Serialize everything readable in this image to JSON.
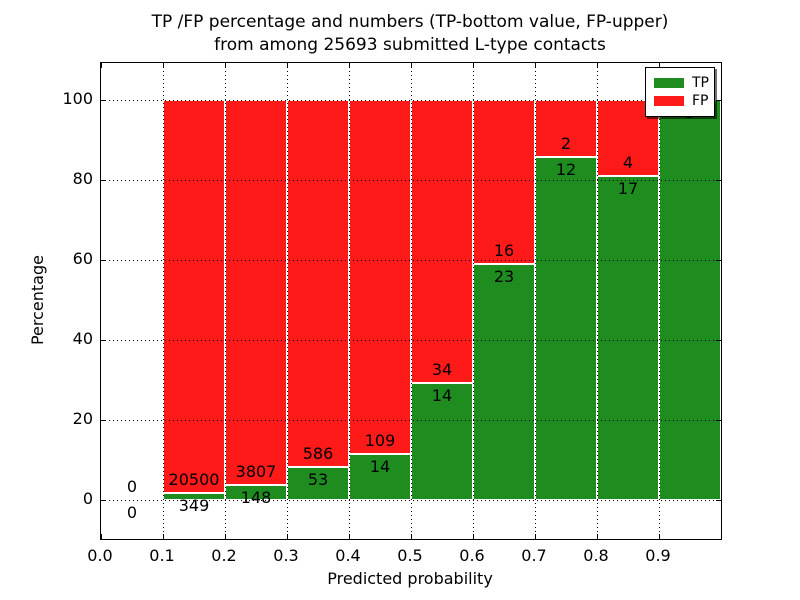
{
  "chart_data": {
    "type": "bar",
    "stacked": true,
    "title_line1": "TP /FP percentage and numbers (TP-bottom value, FP-upper)",
    "title_line2": "from among 25693 submitted L-type contacts",
    "xlabel": "Predicted probability",
    "ylabel": "Percentage",
    "submitted_total": 25693,
    "x_tick_labels": [
      "0.0",
      "0.1",
      "0.2",
      "0.3",
      "0.4",
      "0.5",
      "0.6",
      "0.7",
      "0.8",
      "0.9"
    ],
    "y_tick_values": [
      0,
      20,
      40,
      60,
      80,
      100
    ],
    "xlim": [
      0.0,
      1.0
    ],
    "ylim": [
      -10,
      109
    ],
    "bin_width": 0.1,
    "grid": true,
    "colors": {
      "tp": "#1e8c1e",
      "fp": "#ff1a1a"
    },
    "bins": [
      {
        "x_start": 0.0,
        "tp_count": 0,
        "fp_count": 0,
        "tp_pct": 0.0
      },
      {
        "x_start": 0.1,
        "tp_count": 349,
        "fp_count": 20500,
        "tp_pct": 1.674
      },
      {
        "x_start": 0.2,
        "tp_count": 148,
        "fp_count": 3807,
        "tp_pct": 3.742
      },
      {
        "x_start": 0.3,
        "tp_count": 53,
        "fp_count": 586,
        "tp_pct": 8.294
      },
      {
        "x_start": 0.4,
        "tp_count": 14,
        "fp_count": 109,
        "tp_pct": 11.382
      },
      {
        "x_start": 0.5,
        "tp_count": 14,
        "fp_count": 34,
        "tp_pct": 29.167
      },
      {
        "x_start": 0.6,
        "tp_count": 23,
        "fp_count": 16,
        "tp_pct": 58.974
      },
      {
        "x_start": 0.7,
        "tp_count": 12,
        "fp_count": 2,
        "tp_pct": 85.714
      },
      {
        "x_start": 0.8,
        "tp_count": 17,
        "fp_count": 4,
        "tp_pct": 80.952
      },
      {
        "x_start": 0.9,
        "tp_count": 5,
        "fp_count": 0,
        "tp_pct": 100.0
      }
    ],
    "legend": {
      "position": "upper right",
      "entries": [
        {
          "label": "TP",
          "color": "#1e8c1e"
        },
        {
          "label": "FP",
          "color": "#ff1a1a"
        }
      ]
    }
  }
}
